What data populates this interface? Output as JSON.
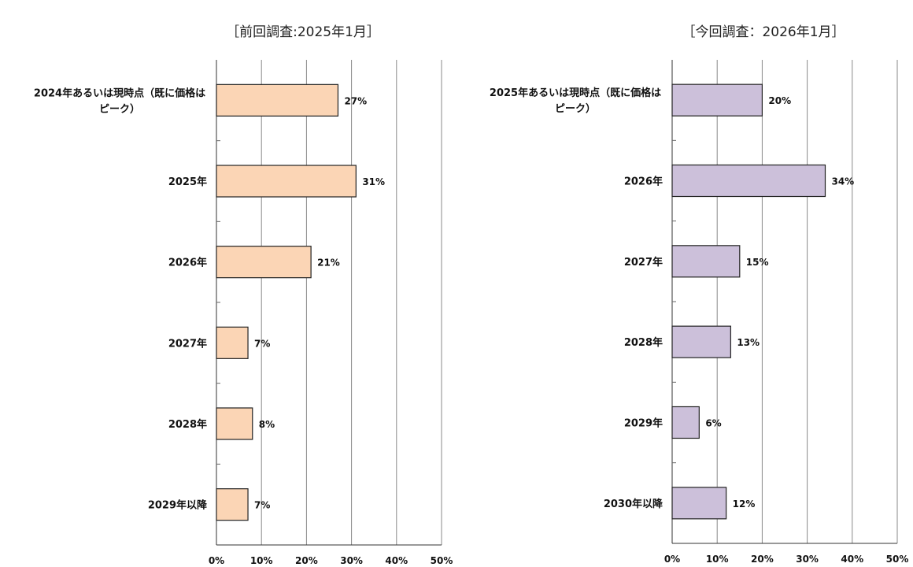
{
  "chart_data": [
    {
      "type": "bar",
      "orientation": "horizontal",
      "title": "［前回調査:2025年1月］",
      "categories": [
        [
          "2024年あるいは現時点（既に価格は",
          "ピーク）"
        ],
        [
          "2025年"
        ],
        [
          "2026年"
        ],
        [
          "2027年"
        ],
        [
          "2028年"
        ],
        [
          "2029年以降"
        ]
      ],
      "values": [
        27,
        31,
        21,
        7,
        8,
        7
      ],
      "data_labels": [
        "27%",
        "31%",
        "21%",
        "7%",
        "8%",
        "7%"
      ],
      "xlim": [
        0,
        50
      ],
      "xticks": [
        "0%",
        "10%",
        "20%",
        "30%",
        "40%",
        "50%"
      ],
      "grid": true,
      "color": "#FBD5B5"
    },
    {
      "type": "bar",
      "orientation": "horizontal",
      "title": "［今回調査：2026年1月］",
      "categories": [
        [
          "2025年あるいは現時点（既に価格は",
          "ピーク）"
        ],
        [
          "2026年"
        ],
        [
          "2027年"
        ],
        [
          "2028年"
        ],
        [
          "2029年"
        ],
        [
          "2030年以降"
        ]
      ],
      "values": [
        20,
        34,
        15,
        13,
        6,
        12
      ],
      "data_labels": [
        "20%",
        "34%",
        "15%",
        "13%",
        "6%",
        "12%"
      ],
      "xlim": [
        0,
        50
      ],
      "xticks": [
        "0%",
        "10%",
        "20%",
        "30%",
        "40%",
        "50%"
      ],
      "grid": true,
      "color": "#CCC0DA"
    }
  ]
}
